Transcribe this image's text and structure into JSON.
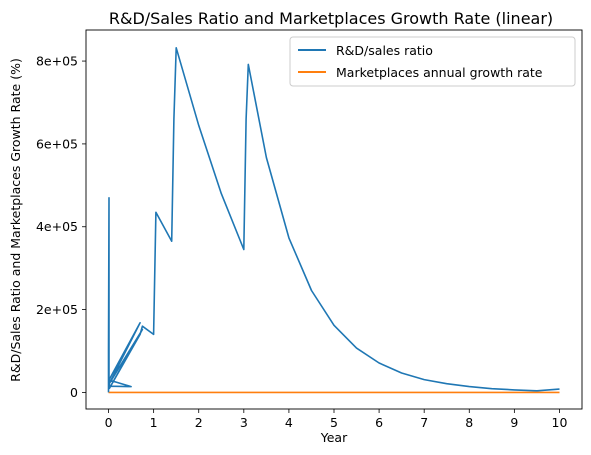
{
  "chart_data": {
    "type": "line",
    "title": "R&D/Sales Ratio and Marketplaces Growth Rate (linear)",
    "xlabel": "Year",
    "ylabel": "R&D/Sales Ratio and Marketplaces Growth Rate (%)",
    "xlim": [
      -0.5,
      10.5
    ],
    "ylim": [
      -40000,
      875000
    ],
    "x_ticks": [
      0,
      1,
      2,
      3,
      4,
      5,
      6,
      7,
      8,
      9,
      10
    ],
    "x_tick_labels": [
      "0",
      "1",
      "2",
      "3",
      "4",
      "5",
      "6",
      "7",
      "8",
      "9",
      "10"
    ],
    "y_ticks": [
      0,
      200000,
      400000,
      600000,
      800000
    ],
    "y_tick_labels": [
      "0",
      "2e+05",
      "4e+05",
      "6e+05",
      "8e+05"
    ],
    "grid": false,
    "legend_position": "top-right",
    "series": [
      {
        "name": "R&D/sales ratio",
        "color": "#1f77b4",
        "x": [
          0,
          0,
          0.01,
          0.01,
          0.02,
          0.02,
          0.5,
          0.01,
          0.7,
          0.01,
          0.75,
          0.02,
          0.7,
          0.75,
          1.0,
          1.05,
          1.4,
          1.45,
          1.5,
          2.0,
          2.5,
          3.0,
          3.05,
          3.1,
          3.5,
          4.0,
          4.5,
          5.0,
          5.5,
          6.0,
          6.5,
          7.0,
          7.5,
          8.0,
          8.5,
          9.0,
          9.5,
          10.0
        ],
        "y": [
          0,
          100000,
          470000,
          15000,
          20000,
          15000,
          14000,
          30000,
          168000,
          20000,
          152000,
          10000,
          140000,
          160000,
          140000,
          435000,
          365000,
          660000,
          832000,
          645000,
          480000,
          345000,
          660000,
          792000,
          567000,
          373000,
          246000,
          162000,
          107000,
          71000,
          47000,
          31000,
          21000,
          14000,
          9000,
          6000,
          4000,
          8000
        ]
      },
      {
        "name": "Marketplaces annual growth rate",
        "color": "#ff7f0e",
        "x": [
          0,
          10
        ],
        "y": [
          0,
          0
        ]
      }
    ]
  }
}
